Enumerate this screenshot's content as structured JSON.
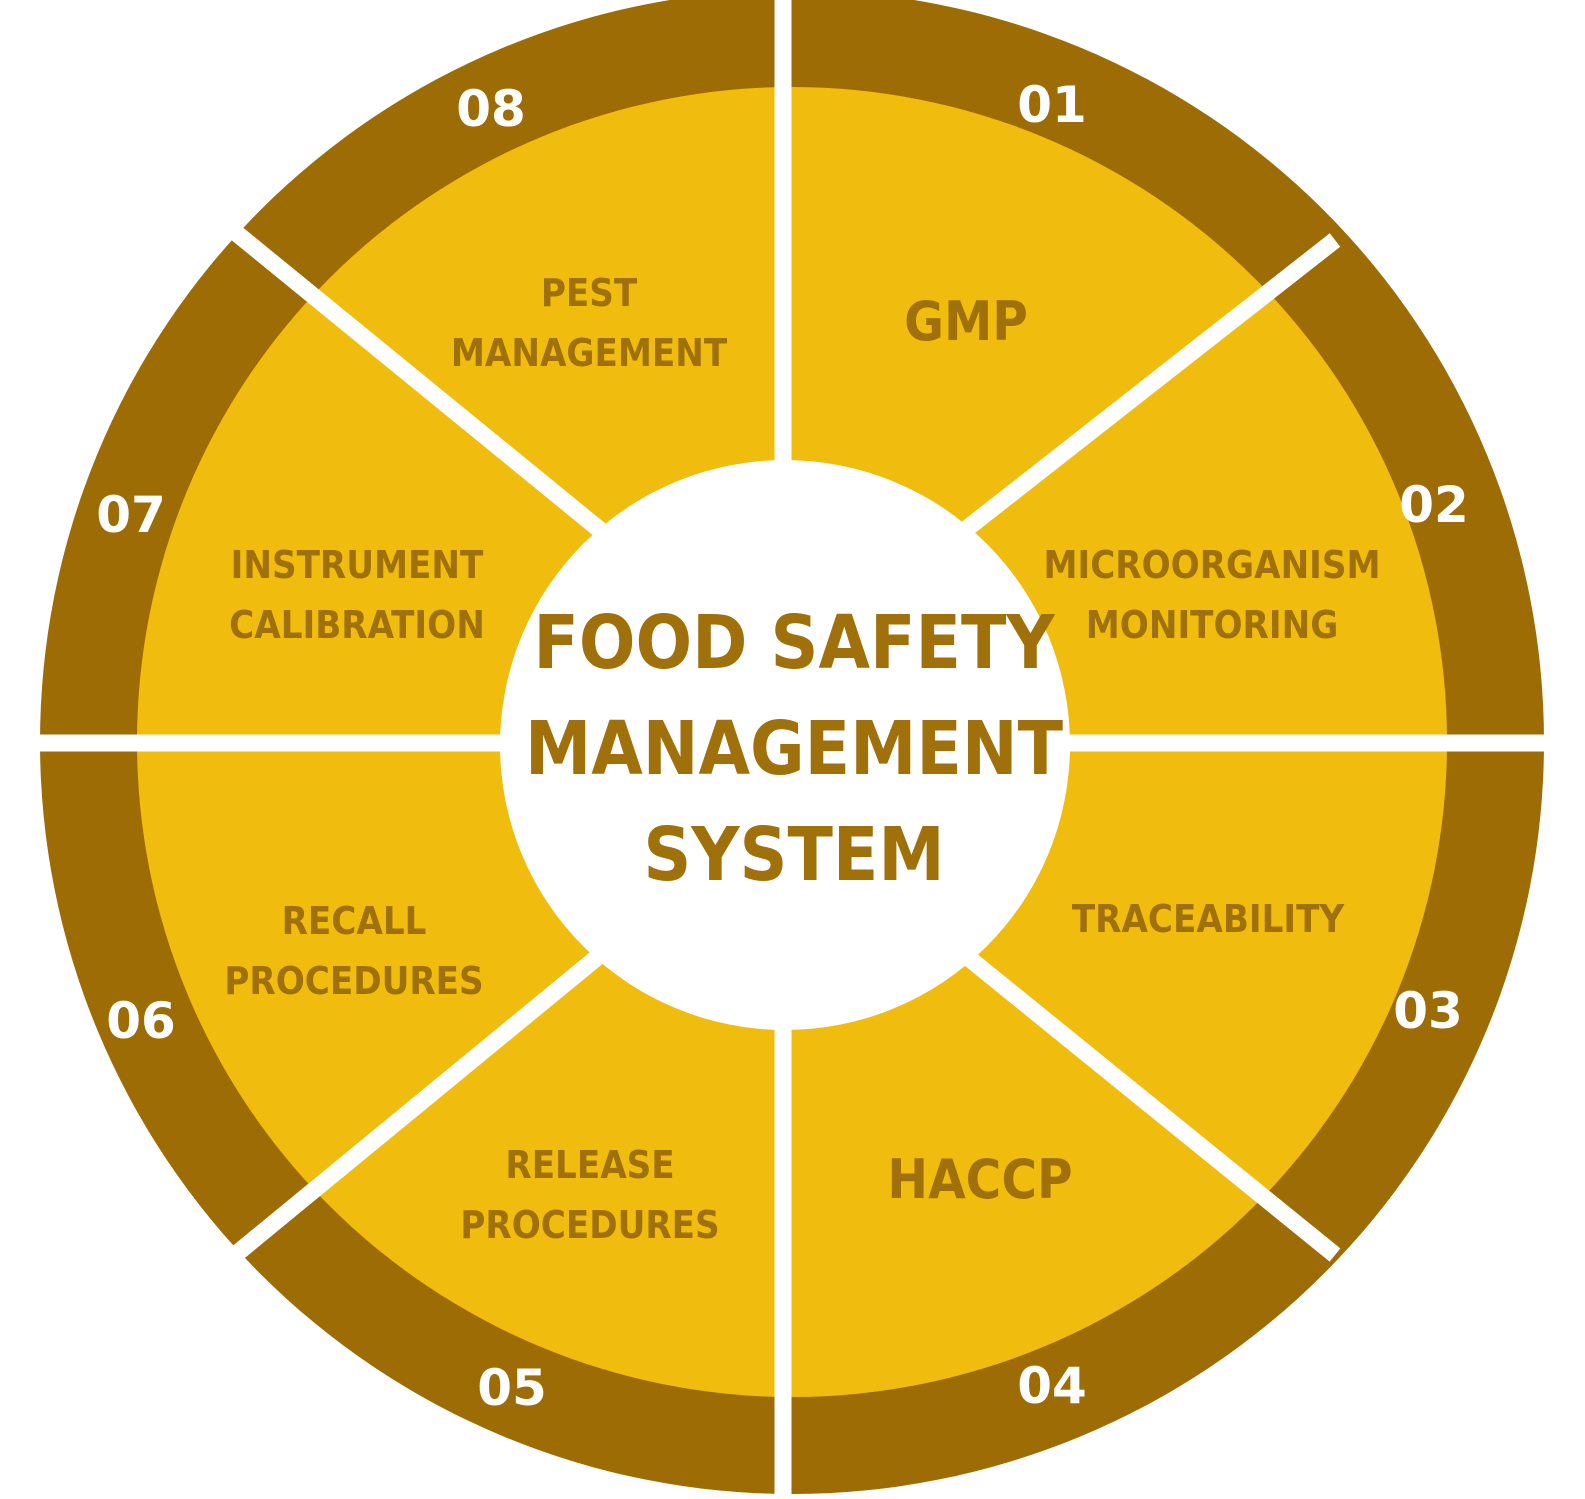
{
  "colors": {
    "outer_ring": "#9e6c05",
    "inner_fill": "#f0bd0f",
    "divider": "#ffffff",
    "center": "#ffffff",
    "text": "#a0700a",
    "number_text": "#ffffff"
  },
  "center": {
    "line1": "FOOD SAFETY",
    "line2": "MANAGEMENT",
    "line3": "SYSTEM"
  },
  "segments": [
    {
      "number": "01",
      "line1": "GMP",
      "line2": ""
    },
    {
      "number": "02",
      "line1": "MICROORGANISM",
      "line2": "MONITORING"
    },
    {
      "number": "03",
      "line1": "TRACEABILITY",
      "line2": ""
    },
    {
      "number": "04",
      "line1": "HACCP",
      "line2": ""
    },
    {
      "number": "05",
      "line1": "RELEASE",
      "line2": "PROCEDURES"
    },
    {
      "number": "06",
      "line1": "RECALL",
      "line2": "PROCEDURES"
    },
    {
      "number": "07",
      "line1": "INSTRUMENT",
      "line2": "CALIBRATION"
    },
    {
      "number": "08",
      "line1": "PEST",
      "line2": "MANAGEMENT"
    }
  ]
}
